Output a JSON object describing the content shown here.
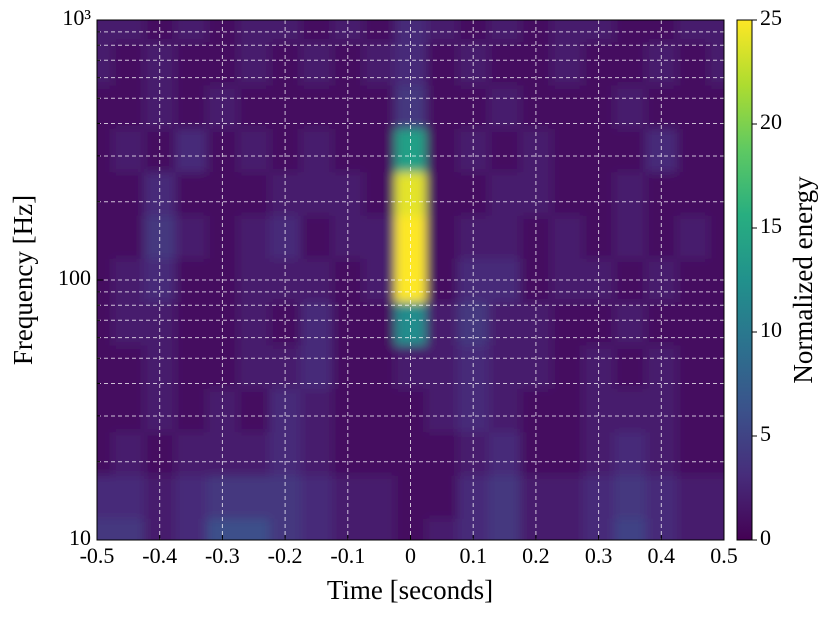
{
  "chart_data": {
    "type": "heatmap",
    "colormap": "viridis",
    "xlabel": "Time [seconds]",
    "ylabel": "Frequency [Hz]",
    "colorbar_label": "Normalized energy",
    "xlim": [
      -0.5,
      0.5
    ],
    "xticks": [
      -0.5,
      -0.4,
      -0.3,
      -0.2,
      -0.1,
      0,
      0.1,
      0.2,
      0.3,
      0.4,
      0.5
    ],
    "ylim": [
      10,
      1000
    ],
    "yscale": "log",
    "yticks": [
      10,
      100,
      {
        "value": 1000,
        "label": "10³"
      }
    ],
    "y_minor_ticks": [
      20,
      30,
      40,
      50,
      60,
      70,
      80,
      90,
      200,
      300,
      400,
      500,
      600,
      700,
      800,
      900
    ],
    "grid": true,
    "clim": [
      0,
      25
    ],
    "cticks": [
      0,
      5,
      10,
      15,
      20,
      25
    ],
    "x": [
      -0.5,
      -0.45,
      -0.4,
      -0.35,
      -0.3,
      -0.25,
      -0.2,
      -0.15,
      -0.1,
      -0.05,
      0,
      0.05,
      0.1,
      0.15,
      0.2,
      0.25,
      0.3,
      0.35,
      0.4,
      0.45,
      0.5
    ],
    "y": [
      10,
      14.7,
      21.5,
      31.6,
      46.4,
      68.1,
      100,
      147,
      215,
      316,
      464,
      681,
      1000
    ],
    "z": [
      [
        4,
        4,
        2,
        3,
        6,
        6,
        4,
        3,
        2,
        2,
        1,
        2,
        3,
        4,
        2,
        2,
        3,
        5,
        3,
        2,
        2
      ],
      [
        3,
        3,
        2,
        3,
        4,
        4,
        4,
        3,
        2,
        2,
        1,
        1,
        3,
        4,
        2,
        2,
        3,
        4,
        3,
        2,
        2
      ],
      [
        1,
        2,
        1,
        2,
        2,
        2,
        3,
        2,
        1,
        1,
        1,
        1,
        2,
        3,
        1,
        1,
        2,
        3,
        2,
        1,
        1
      ],
      [
        1,
        1,
        2,
        1,
        2,
        1,
        3,
        2,
        1,
        1,
        1,
        2,
        3,
        2,
        1,
        1,
        2,
        2,
        2,
        1,
        1
      ],
      [
        1,
        1,
        2,
        1,
        1,
        2,
        2,
        3,
        1,
        1,
        2,
        2,
        3,
        2,
        2,
        1,
        2,
        1,
        2,
        1,
        1
      ],
      [
        1,
        2,
        2,
        1,
        1,
        2,
        1,
        3,
        1,
        1,
        12,
        2,
        4,
        2,
        2,
        1,
        1,
        2,
        1,
        1,
        1
      ],
      [
        1,
        2,
        3,
        1,
        1,
        2,
        2,
        2,
        1,
        2,
        25,
        1,
        3,
        3,
        1,
        2,
        2,
        1,
        2,
        1,
        1
      ],
      [
        1,
        1,
        4,
        2,
        1,
        2,
        3,
        1,
        2,
        2,
        25,
        1,
        2,
        2,
        1,
        2,
        1,
        2,
        1,
        2,
        1
      ],
      [
        1,
        1,
        3,
        1,
        1,
        1,
        2,
        2,
        2,
        1,
        24,
        1,
        1,
        2,
        2,
        1,
        1,
        2,
        1,
        1,
        1
      ],
      [
        1,
        2,
        1,
        3,
        1,
        2,
        1,
        2,
        1,
        1,
        14,
        1,
        2,
        1,
        2,
        1,
        1,
        1,
        3,
        1,
        1
      ],
      [
        1,
        1,
        2,
        1,
        2,
        1,
        1,
        1,
        1,
        1,
        4,
        1,
        1,
        2,
        1,
        1,
        1,
        2,
        1,
        1,
        1
      ],
      [
        2,
        1,
        2,
        1,
        1,
        2,
        1,
        2,
        1,
        2,
        3,
        1,
        2,
        1,
        1,
        2,
        1,
        1,
        2,
        1,
        2
      ],
      [
        2,
        2,
        1,
        2,
        1,
        2,
        2,
        1,
        2,
        1,
        3,
        2,
        1,
        2,
        1,
        2,
        2,
        1,
        1,
        2,
        2
      ]
    ]
  }
}
